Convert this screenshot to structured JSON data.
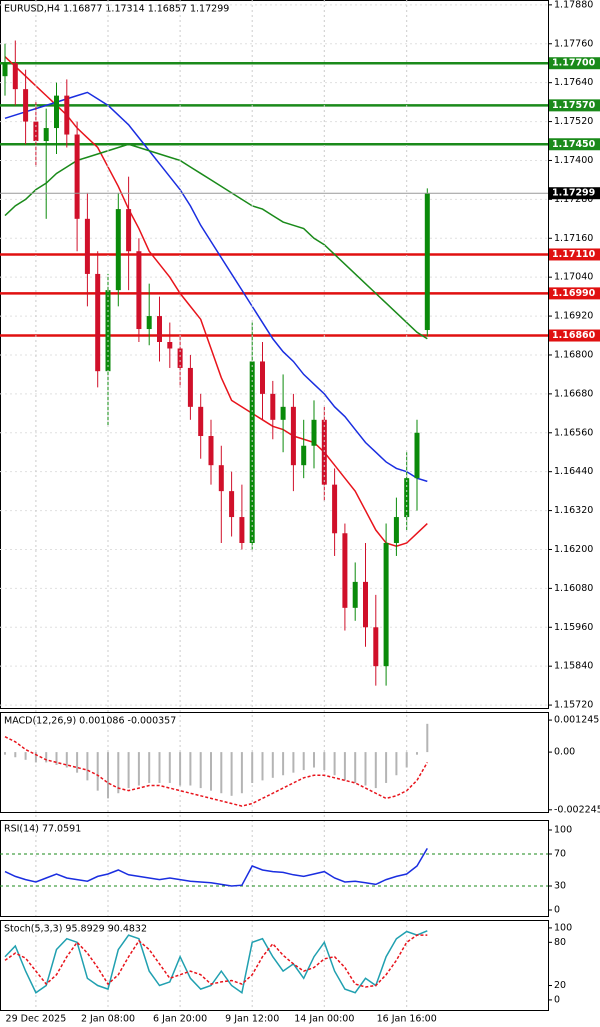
{
  "chart_data": [
    {
      "type": "candlestick",
      "title": "EURUSD,H4  1.16877 1.17314 1.16857 1.17299",
      "categories": [
        null,
        null,
        null,
        "29 Dec 2025",
        null,
        null,
        null,
        null,
        null,
        null,
        "2 Jan 08:00",
        null,
        null,
        null,
        null,
        null,
        null,
        "6 Jan 20:00",
        null,
        null,
        null,
        null,
        null,
        null,
        "9 Jan 12:00",
        null,
        null,
        null,
        null,
        null,
        null,
        "14 Jan 00:00",
        null,
        null,
        null,
        null,
        null,
        null,
        null,
        "16 Jan 16:00",
        null,
        null
      ],
      "open": [
        1.1766,
        1.177,
        1.1762,
        1.1752,
        1.1746,
        1.175,
        1.176,
        1.1748,
        1.1722,
        1.1705,
        1.1675,
        1.17,
        1.1725,
        1.1712,
        1.1688,
        1.1692,
        1.1684,
        1.1682,
        1.1676,
        1.1664,
        1.1655,
        1.1646,
        1.1638,
        1.163,
        1.1622,
        1.1678,
        1.1668,
        1.166,
        1.1664,
        1.1646,
        1.1652,
        1.166,
        1.164,
        1.1625,
        1.1602,
        1.161,
        1.1596,
        1.1584,
        1.1622,
        1.163,
        1.1642,
        1.16877
      ],
      "high": [
        1.1776,
        1.1777,
        1.1768,
        1.1758,
        1.1756,
        1.1764,
        1.1765,
        1.1752,
        1.173,
        1.1712,
        1.1705,
        1.173,
        1.1735,
        1.1716,
        1.1702,
        1.1698,
        1.169,
        1.1686,
        1.168,
        1.1668,
        1.166,
        1.1652,
        1.1644,
        1.164,
        1.169,
        1.1684,
        1.1672,
        1.1674,
        1.1668,
        1.166,
        1.1666,
        1.1664,
        1.1645,
        1.1628,
        1.1616,
        1.1622,
        1.1606,
        1.1628,
        1.1636,
        1.165,
        1.166,
        1.17314
      ],
      "low": [
        1.176,
        1.1757,
        1.1745,
        1.1738,
        1.1722,
        1.1742,
        1.1744,
        1.1712,
        1.1695,
        1.167,
        1.1658,
        1.1695,
        1.17,
        1.1684,
        1.1683,
        1.1678,
        1.1676,
        1.167,
        1.166,
        1.1648,
        1.164,
        1.1622,
        1.1624,
        1.162,
        1.162,
        1.166,
        1.1654,
        1.165,
        1.1638,
        1.1642,
        1.1645,
        1.1635,
        1.1618,
        1.1595,
        1.1598,
        1.159,
        1.1578,
        1.1578,
        1.1618,
        1.1626,
        1.1632,
        1.16857
      ],
      "close": [
        1.177,
        1.1762,
        1.1752,
        1.1746,
        1.175,
        1.176,
        1.1748,
        1.1722,
        1.1705,
        1.1675,
        1.17,
        1.1725,
        1.1712,
        1.1688,
        1.1692,
        1.1684,
        1.1682,
        1.1676,
        1.1664,
        1.1655,
        1.1646,
        1.1638,
        1.163,
        1.1622,
        1.1678,
        1.1668,
        1.166,
        1.1664,
        1.1646,
        1.1652,
        1.166,
        1.164,
        1.1625,
        1.1602,
        1.161,
        1.1596,
        1.1584,
        1.1622,
        1.163,
        1.1642,
        1.1656,
        1.17299
      ],
      "up_color": "#0a8a0a",
      "down_color": "#d0102a",
      "series": [
        {
          "color": "#e8141c",
          "values": [
            1.1772,
            1.1769,
            1.1766,
            1.1763,
            1.176,
            1.1757,
            1.1754,
            1.175,
            1.1747,
            1.1744,
            1.1738,
            1.1732,
            1.1725,
            1.1719,
            1.1712,
            1.1708,
            1.1704,
            1.1699,
            1.1695,
            1.1691,
            1.1682,
            1.1673,
            1.1666,
            1.1664,
            1.1662,
            1.166,
            1.1658,
            1.1657,
            1.1655,
            1.1654,
            1.1653,
            1.165,
            1.1646,
            1.1642,
            1.1638,
            1.1632,
            1.1626,
            1.1622,
            1.1621,
            1.1622,
            1.1625,
            1.1628
          ]
        },
        {
          "color": "#1a2ee0",
          "values": [
            1.1753,
            1.1754,
            1.1755,
            1.1756,
            1.1757,
            1.1758,
            1.1759,
            1.176,
            1.1761,
            1.1759,
            1.1757,
            1.1754,
            1.1751,
            1.1747,
            1.1743,
            1.1739,
            1.1735,
            1.1731,
            1.1726,
            1.172,
            1.1715,
            1.171,
            1.1705,
            1.17,
            1.1695,
            1.169,
            1.1685,
            1.1681,
            1.1678,
            1.1674,
            1.1671,
            1.1668,
            1.1664,
            1.1661,
            1.1657,
            1.1653,
            1.165,
            1.1647,
            1.1645,
            1.1644,
            1.1642,
            1.1641
          ]
        },
        {
          "color": "#1a8a1a",
          "values": [
            1.1723,
            1.1726,
            1.1728,
            1.1731,
            1.1733,
            1.1736,
            1.1738,
            1.174,
            1.1741,
            1.1742,
            1.1743,
            1.1744,
            1.1745,
            1.1744,
            1.1743,
            1.1742,
            1.1741,
            1.174,
            1.1738,
            1.1736,
            1.1734,
            1.1732,
            1.173,
            1.1728,
            1.1726,
            1.1725,
            1.1723,
            1.1721,
            1.172,
            1.1719,
            1.1716,
            1.1714,
            1.1711,
            1.1708,
            1.1705,
            1.1702,
            1.1699,
            1.1696,
            1.1693,
            1.169,
            1.1687,
            1.1685
          ]
        }
      ],
      "levels": [
        {
          "value": 1.177,
          "label": "1.17700",
          "color": "#1a8a1a"
        },
        {
          "value": 1.1757,
          "label": "1.17570",
          "color": "#1a8a1a"
        },
        {
          "value": 1.1745,
          "label": "1.17450",
          "color": "#1a8a1a"
        },
        {
          "value": 1.1711,
          "label": "1.17110",
          "color": "#e01010"
        },
        {
          "value": 1.1699,
          "label": "1.16990",
          "color": "#e01010"
        },
        {
          "value": 1.1686,
          "label": "1.16860",
          "color": "#e01010"
        }
      ],
      "last_price": 1.17299,
      "ylim": [
        1.15711,
        1.17895
      ],
      "yticks": [
        {
          "value": 1.1788,
          "label": "1.17880"
        },
        {
          "value": 1.1776,
          "label": "1.17760"
        },
        {
          "value": 1.1764,
          "label": "1.17640"
        },
        {
          "value": 1.1752,
          "label": "1.17520"
        },
        {
          "value": 1.174,
          "label": "1.17400"
        },
        {
          "value": 1.1728,
          "label": "1.17280"
        },
        {
          "value": 1.1716,
          "label": "1.17160"
        },
        {
          "value": 1.1704,
          "label": "1.17040"
        },
        {
          "value": 1.1692,
          "label": "1.16920"
        },
        {
          "value": 1.168,
          "label": "1.16800"
        },
        {
          "value": 1.1668,
          "label": "1.16680"
        },
        {
          "value": 1.1656,
          "label": "1.16560"
        },
        {
          "value": 1.1644,
          "label": "1.16440"
        },
        {
          "value": 1.1632,
          "label": "1.16320"
        },
        {
          "value": 1.162,
          "label": "1.16200"
        },
        {
          "value": 1.1608,
          "label": "1.16080"
        },
        {
          "value": 1.1596,
          "label": "1.15960"
        },
        {
          "value": 1.1584,
          "label": "1.15840"
        },
        {
          "value": 1.1572,
          "label": "1.15720"
        }
      ],
      "grid": true
    },
    {
      "type": "macd",
      "title": "MACD(12,26,9) 0.001086 -0.000357",
      "series": [
        {
          "color": "#b4b4b4",
          "values": [
            -0.0001,
            -0.0002,
            -0.0003,
            -0.0004,
            -0.0004,
            -0.0005,
            -0.0006,
            -0.0008,
            -0.0011,
            -0.0015,
            -0.0018,
            -0.0016,
            -0.0014,
            -0.0013,
            -0.0012,
            -0.0012,
            -0.0012,
            -0.0013,
            -0.0013,
            -0.0014,
            -0.0015,
            -0.0016,
            -0.0017,
            -0.0016,
            -0.0012,
            -0.0011,
            -0.001,
            -0.0009,
            -0.0008,
            -0.0007,
            -0.0006,
            -0.0007,
            -0.0009,
            -0.0011,
            -0.0012,
            -0.0013,
            -0.0014,
            -0.0012,
            -0.0009,
            -0.0006,
            -0.0001,
            0.0011
          ]
        },
        {
          "color": "#e8141c",
          "values": [
            0.0006,
            0.0004,
            0.0001,
            -0.0001,
            -0.0003,
            -0.0004,
            -0.0005,
            -0.0006,
            -0.0007,
            -0.0009,
            -0.0012,
            -0.0014,
            -0.0015,
            -0.0014,
            -0.0013,
            -0.0013,
            -0.0014,
            -0.0015,
            -0.0016,
            -0.0017,
            -0.0018,
            -0.0019,
            -0.002,
            -0.0021,
            -0.002,
            -0.0018,
            -0.0016,
            -0.0014,
            -0.0012,
            -0.001,
            -0.0009,
            -0.0009,
            -0.001,
            -0.0011,
            -0.0012,
            -0.0014,
            -0.0016,
            -0.0018,
            -0.0017,
            -0.0015,
            -0.0011,
            -0.0004
          ]
        }
      ],
      "ylim": [
        -0.00233,
        0.00156
      ],
      "yticks": [
        0.001245,
        {
          "value": 0,
          "label": "0.00"
        },
        -0.002245
      ]
    },
    {
      "type": "line",
      "title": "RSI(14) 77.0591",
      "series": [
        {
          "color": "#1a2ee0",
          "values": [
            48,
            42,
            38,
            35,
            40,
            45,
            40,
            38,
            36,
            42,
            45,
            50,
            44,
            42,
            40,
            38,
            40,
            38,
            36,
            35,
            34,
            32,
            30,
            31,
            55,
            50,
            48,
            47,
            44,
            42,
            45,
            48,
            40,
            35,
            36,
            34,
            32,
            38,
            42,
            45,
            55,
            77
          ]
        }
      ],
      "levels": [
        {
          "value": 70,
          "color": "#1a8a1a"
        },
        {
          "value": 30,
          "color": "#1a8a1a"
        }
      ],
      "ylim": [
        -7.5,
        112.5
      ],
      "yticks": [
        0,
        30,
        70,
        100
      ]
    },
    {
      "type": "line",
      "title": "Stoch(5,3,3) 95.8929 90.4832",
      "series": [
        {
          "color": "#20a0b0",
          "values": [
            60,
            75,
            40,
            10,
            20,
            70,
            85,
            80,
            30,
            20,
            15,
            70,
            90,
            85,
            40,
            20,
            25,
            60,
            30,
            15,
            20,
            40,
            20,
            10,
            80,
            85,
            60,
            40,
            50,
            30,
            60,
            80,
            40,
            15,
            10,
            30,
            20,
            60,
            85,
            95,
            90,
            96
          ]
        },
        {
          "color": "#e8141c",
          "dashed": true,
          "values": [
            55,
            65,
            58,
            40,
            22,
            35,
            60,
            80,
            65,
            45,
            22,
            35,
            60,
            82,
            70,
            50,
            30,
            35,
            40,
            35,
            22,
            25,
            27,
            22,
            35,
            60,
            78,
            62,
            50,
            40,
            45,
            57,
            60,
            45,
            22,
            18,
            20,
            35,
            55,
            80,
            90,
            90
          ]
        }
      ],
      "ylim": [
        -14,
        111
      ],
      "yticks": [
        0,
        20,
        80,
        100
      ]
    }
  ]
}
